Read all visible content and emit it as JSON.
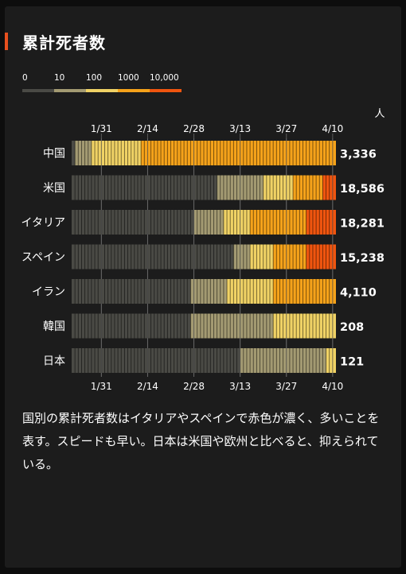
{
  "header": {
    "title": "累計死者数"
  },
  "legend": {
    "thresholds": [
      "0",
      "10",
      "100",
      "1000",
      "10,000"
    ],
    "colors": [
      "#4a4a45",
      "#a39a72",
      "#f0d265",
      "#f5a21a",
      "#f0550f"
    ]
  },
  "chart_data": {
    "type": "heatmap",
    "unit": "人",
    "x_ticks": [
      "1/31",
      "2/14",
      "2/28",
      "3/13",
      "3/27",
      "4/10"
    ],
    "x_range": [
      "2020-01-22",
      "2020-04-11"
    ],
    "levels": [
      "0",
      "10",
      "100",
      "1000",
      "10,000"
    ],
    "rows": [
      {
        "country": "中国",
        "total": "3,336",
        "level_start_dates": [
          "2020-01-22",
          "2020-01-23",
          "2020-01-28",
          "2020-02-12",
          null
        ]
      },
      {
        "country": "米国",
        "total": "18,586",
        "level_start_dates": [
          "2020-01-22",
          "2020-03-06",
          "2020-03-20",
          "2020-03-29",
          "2020-04-07"
        ]
      },
      {
        "country": "イタリア",
        "total": "18,281",
        "level_start_dates": [
          "2020-01-22",
          "2020-02-28",
          "2020-03-08",
          "2020-03-16",
          "2020-04-02"
        ]
      },
      {
        "country": "スペイン",
        "total": "15,238",
        "level_start_dates": [
          "2020-01-22",
          "2020-03-11",
          "2020-03-16",
          "2020-03-23",
          "2020-04-02"
        ]
      },
      {
        "country": "イラン",
        "total": "4,110",
        "level_start_dates": [
          "2020-01-22",
          "2020-02-27",
          "2020-03-09",
          "2020-03-23",
          null
        ]
      },
      {
        "country": "韓国",
        "total": "208",
        "level_start_dates": [
          "2020-01-22",
          "2020-02-27",
          "2020-03-23",
          null,
          null
        ]
      },
      {
        "country": "日本",
        "total": "121",
        "level_start_dates": [
          "2020-01-22",
          "2020-03-13",
          "2020-04-08",
          null,
          null
        ]
      }
    ]
  },
  "caption": "国別の累計死者数はイタリアやスペインで赤色が濃く、多いことを表す。スピードも早い。日本は米国や欧州と比べると、抑えられている。"
}
